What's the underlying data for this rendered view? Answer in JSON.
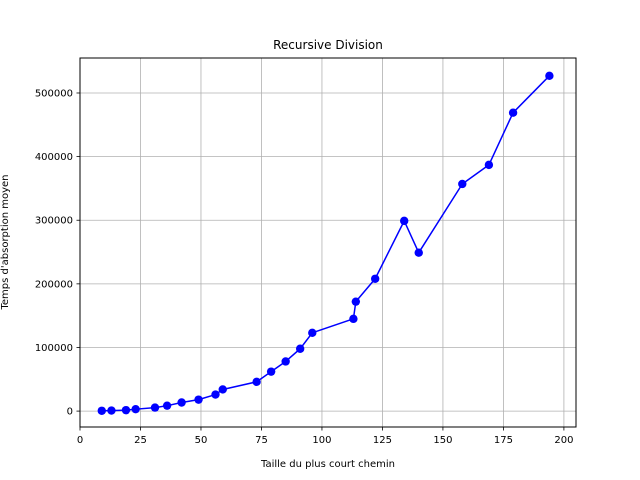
{
  "chart_data": {
    "type": "line",
    "title": "Recursive Division",
    "xlabel": "Taille du plus court chemin",
    "ylabel": "Temps d'absorption moyen",
    "xlim": [
      0,
      205
    ],
    "ylim": [
      -25000,
      555000
    ],
    "x_ticks": [
      0,
      25,
      50,
      75,
      100,
      125,
      150,
      175,
      200
    ],
    "y_ticks": [
      0,
      100000,
      200000,
      300000,
      400000,
      500000
    ],
    "grid": true,
    "colors": {
      "line": "#0000ff",
      "marker": "#0000ff",
      "grid": "#b0b0b0"
    },
    "series": [
      {
        "marker": "circle",
        "x": [
          9,
          13,
          19,
          23,
          31,
          36,
          42,
          49,
          56,
          59,
          73,
          79,
          85,
          91,
          96,
          113,
          114,
          122,
          134,
          140,
          158,
          169,
          179,
          194
        ],
        "y": [
          500,
          800,
          1500,
          3000,
          5500,
          8500,
          13500,
          18000,
          26000,
          34000,
          46000,
          62000,
          78000,
          98000,
          123000,
          145000,
          172000,
          208000,
          299000,
          249000,
          357000,
          387000,
          469000,
          527000
        ]
      }
    ]
  }
}
